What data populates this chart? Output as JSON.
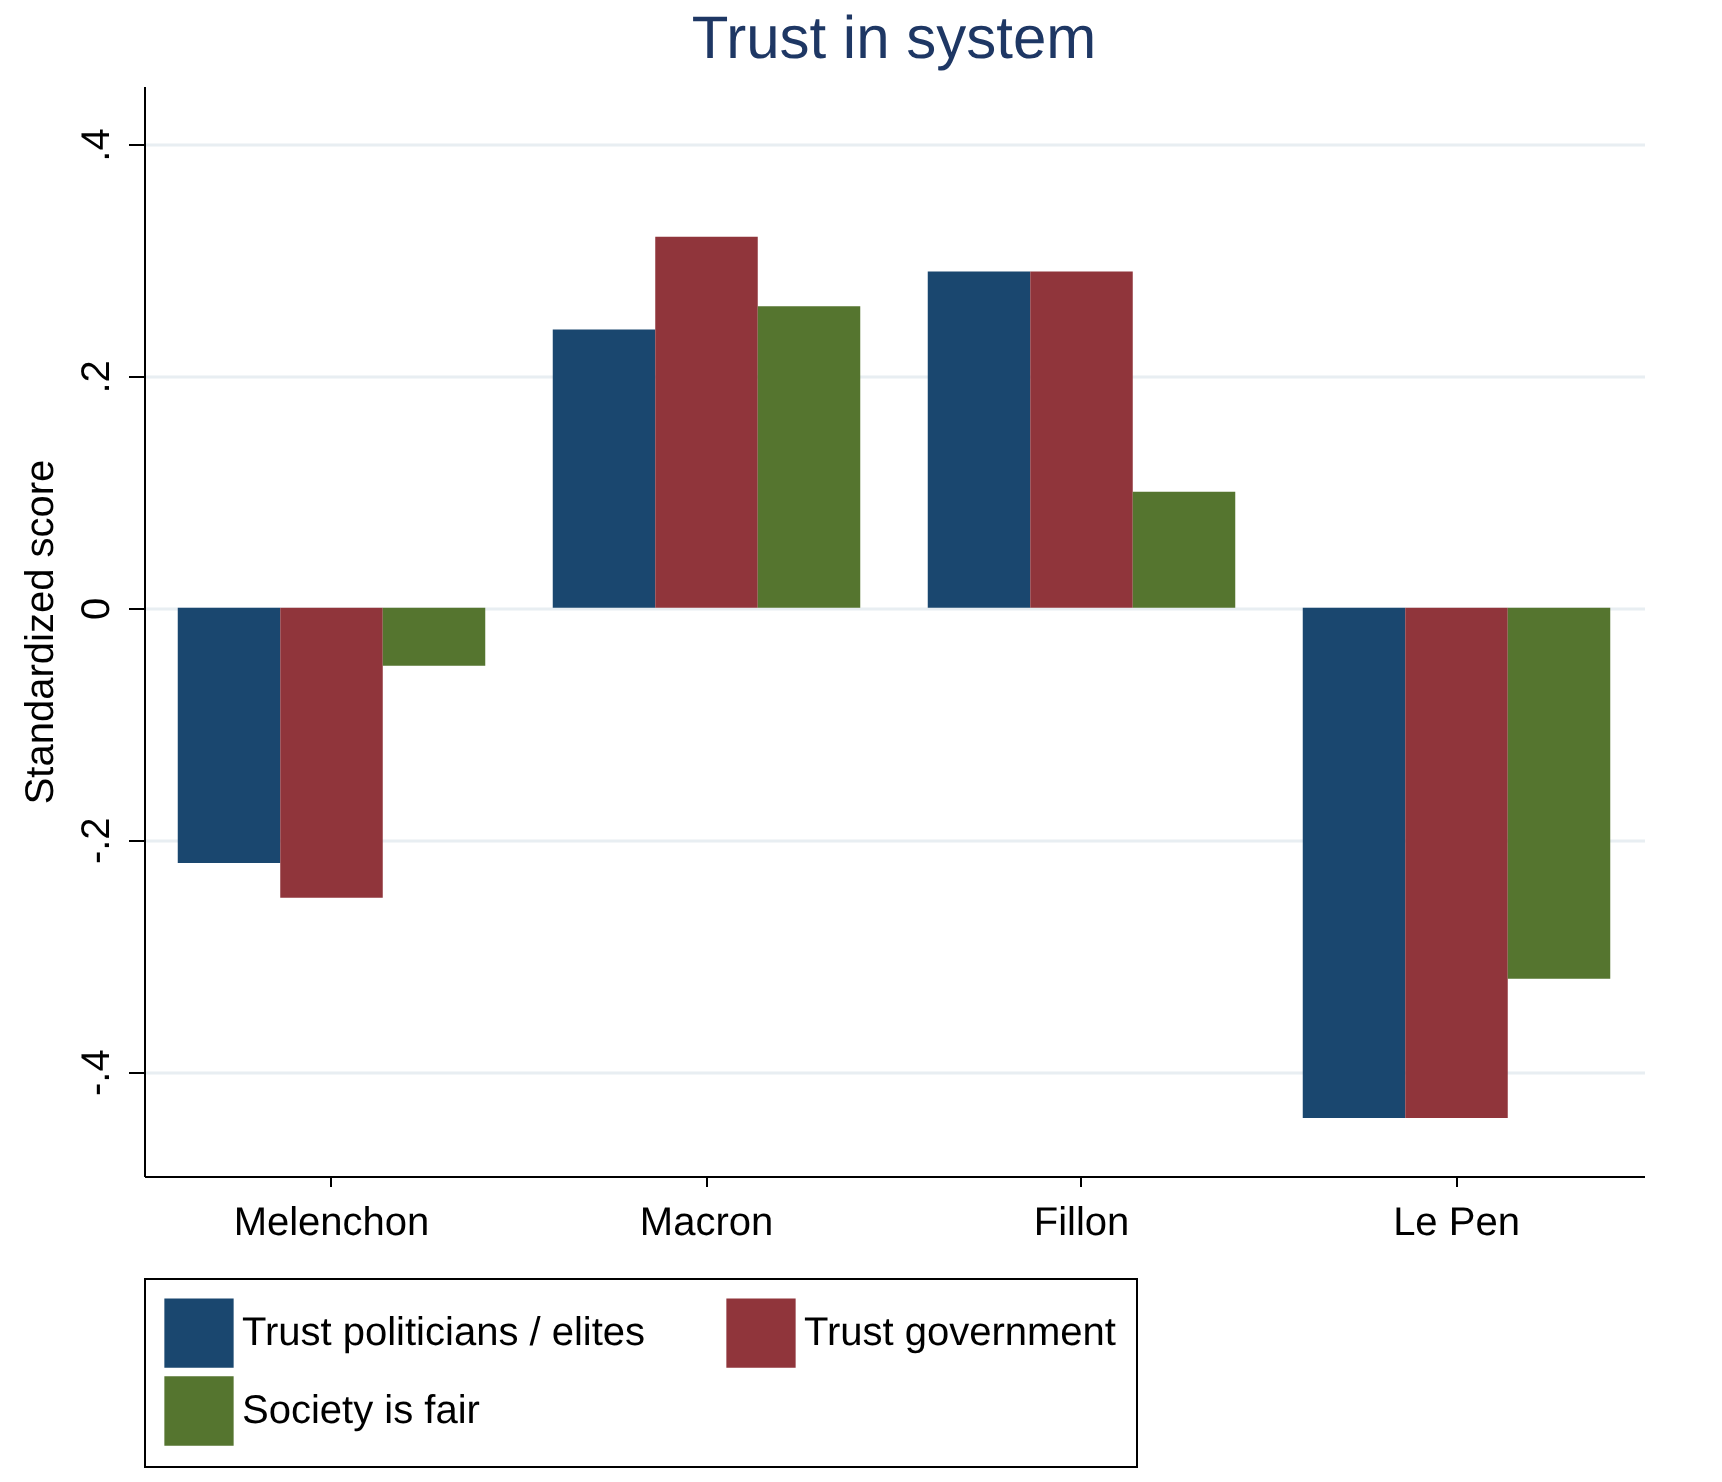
{
  "chart_data": {
    "type": "bar",
    "title": "Trust in system",
    "ylabel": "Standardized score",
    "categories": [
      "Melenchon",
      "Macron",
      "Fillon",
      "Le Pen"
    ],
    "series": [
      {
        "name": "Trust politicians / elites",
        "color": "#1a476f",
        "values": [
          -0.22,
          0.24,
          0.29,
          -0.44
        ]
      },
      {
        "name": "Trust government",
        "color": "#90353b",
        "values": [
          -0.25,
          0.32,
          0.29,
          -0.44
        ]
      },
      {
        "name": "Society is fair",
        "color": "#55752f",
        "values": [
          -0.05,
          0.26,
          0.1,
          -0.32
        ]
      }
    ],
    "ylim": [
      -0.49,
      0.45
    ],
    "yticks": [
      {
        "value": -0.4,
        "label": "-.4"
      },
      {
        "value": -0.2,
        "label": "-.2"
      },
      0,
      {
        "value": 0.2,
        "label": ".2"
      },
      {
        "value": 0.4,
        "label": ".4"
      }
    ],
    "grid": "y",
    "legend": "bottom"
  }
}
